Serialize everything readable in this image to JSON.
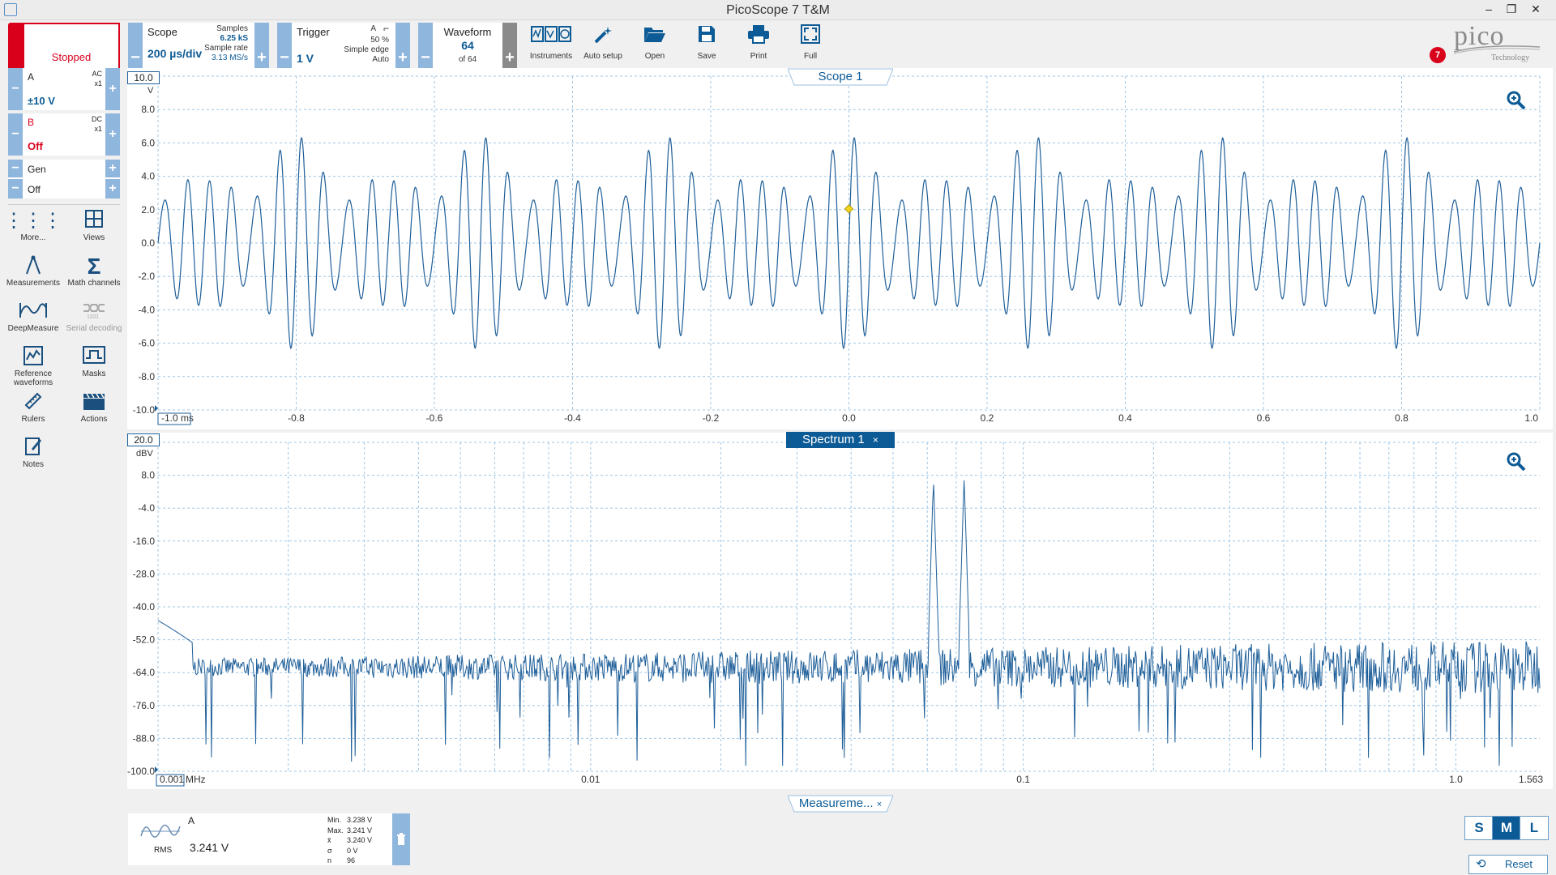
{
  "window": {
    "title": "PicoScope 7 T&M"
  },
  "toolbar": {
    "run_status": "Stopped",
    "scope": {
      "label": "Scope",
      "timebase": "200 µs/div",
      "samples_label": "Samples",
      "samples": "6.25 kS",
      "rate_label": "Sample rate",
      "rate": "3.13 MS/s"
    },
    "trigger": {
      "label": "Trigger",
      "level": "1 V",
      "channel": "A",
      "percent": "50 %",
      "type": "Simple edge",
      "mode": "Auto"
    },
    "waveform": {
      "label": "Waveform",
      "current": "64",
      "of": "of 64"
    },
    "tools": [
      "Instruments",
      "Auto setup",
      "Open",
      "Save",
      "Print",
      "Full"
    ],
    "notification_count": "7",
    "logo_text": "pico",
    "logo_sub": "Technology"
  },
  "channels": {
    "a": {
      "name": "A",
      "coupling": "AC",
      "probe": "x1",
      "range": "±10 V"
    },
    "b": {
      "name": "B",
      "coupling": "DC",
      "probe": "x1",
      "range": "Off"
    },
    "gen": {
      "name": "Gen",
      "state": "Off"
    }
  },
  "sidebar": {
    "items": [
      {
        "label": "More...",
        "icon": "grid-dots-icon"
      },
      {
        "label": "Views",
        "icon": "views-icon"
      },
      {
        "label": "Measurements",
        "icon": "measurements-icon"
      },
      {
        "label": "Math channels",
        "icon": "sigma-icon"
      },
      {
        "label": "DeepMeasure",
        "icon": "deepmeasure-icon"
      },
      {
        "label": "Serial decoding",
        "icon": "serial-icon"
      },
      {
        "label": "Reference waveforms",
        "icon": "reference-icon"
      },
      {
        "label": "Masks",
        "icon": "masks-icon"
      },
      {
        "label": "Rulers",
        "icon": "ruler-icon"
      },
      {
        "label": "Actions",
        "icon": "actions-icon"
      },
      {
        "label": "Notes",
        "icon": "notes-icon"
      }
    ]
  },
  "scope_view": {
    "tab_label": "Scope 1",
    "y_top_label": "10.0",
    "y_unit": "V",
    "y_ticks": [
      "8.0",
      "6.0",
      "4.0",
      "2.0",
      "0.0",
      "-2.0",
      "-4.0",
      "-6.0",
      "-8.0",
      "-10.0"
    ],
    "x_first_label": "-1.0 ms",
    "x_ticks": [
      "-0.8",
      "-0.6",
      "-0.4",
      "-0.2",
      "0.0",
      "0.2",
      "0.4",
      "0.6",
      "0.8",
      "1.0"
    ]
  },
  "spectrum_view": {
    "tab_label": "Spectrum 1",
    "close_glyph": "×",
    "y_top_label": "20.0",
    "y_unit": "dBV",
    "y_ticks": [
      "8.0",
      "-4.0",
      "-16.0",
      "-28.0",
      "-40.0",
      "-52.0",
      "-64.0",
      "-76.0",
      "-88.0",
      "-100.0"
    ],
    "x_first_label": "0.001",
    "x_unit": "MHz",
    "x_ticks": [
      "0.01",
      "0.1",
      "1.0",
      "1.563"
    ]
  },
  "measurements": {
    "tab_label": "Measureme...",
    "channel": "A",
    "type": "RMS",
    "value": "3.241 V",
    "stats": [
      {
        "label": "Min.",
        "value": "3.238 V"
      },
      {
        "label": "Max.",
        "value": "3.241 V"
      },
      {
        "label": "x̄",
        "value": "3.240 V"
      },
      {
        "label": "σ",
        "value": "0 V"
      },
      {
        "label": "n",
        "value": "96"
      }
    ]
  },
  "bottom_right": {
    "sizes": [
      "S",
      "M",
      "L"
    ],
    "selected": "M",
    "reset_label": "Reset"
  },
  "chart_data": [
    {
      "type": "line",
      "title": "Scope 1",
      "xlabel": "ms",
      "ylabel": "V",
      "xlim": [
        -1.0,
        1.0
      ],
      "ylim": [
        -10.0,
        10.0
      ],
      "grid": true,
      "series": [
        {
          "name": "A",
          "color": "#1f5f99",
          "description_values": {
            "carrier_cycles_per_ms": 30,
            "beat_cycles_per_ms": 7.5,
            "peak_amplitude_v": 6.4
          }
        }
      ]
    },
    {
      "type": "line",
      "title": "Spectrum 1",
      "xlabel": "MHz",
      "ylabel": "dBV",
      "xscale": "log",
      "xlim": [
        0.001,
        1.563
      ],
      "ylim": [
        -100.0,
        20.0
      ],
      "grid": true,
      "series": [
        {
          "name": "A",
          "color": "#1f5f99",
          "peaks": [
            {
              "x": 0.062,
              "y": 7.0
            },
            {
              "x": 0.073,
              "y": 7.0
            }
          ],
          "noise_floor_dbv": -62
        }
      ]
    }
  ]
}
